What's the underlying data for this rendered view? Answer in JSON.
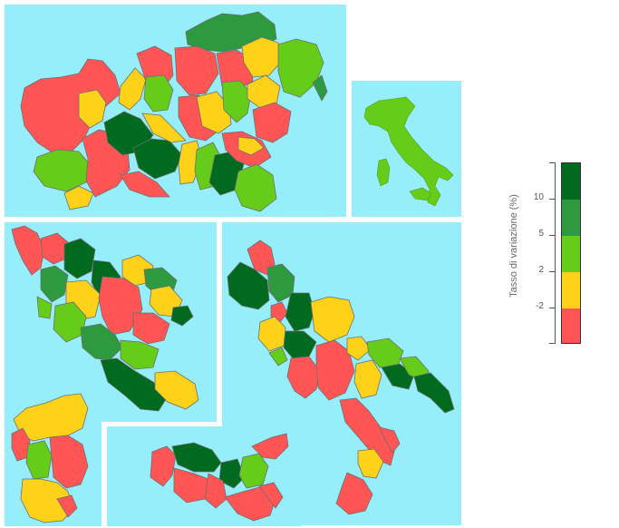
{
  "legend": {
    "title": "Tasso di variazione (%)",
    "ticks": [
      "10",
      "5",
      "2",
      "-2"
    ],
    "classes": [
      {
        "label": "> 10",
        "color": "#006a1f"
      },
      {
        "label": "5 – 10",
        "color": "#2e9a40"
      },
      {
        "label": "2 – 5",
        "color": "#66cc1a"
      },
      {
        "label": "-2 – 2",
        "color": "#ffd21a"
      },
      {
        "label": "< -2",
        "color": "#ff5555"
      }
    ]
  },
  "colors": {
    "sea": "#96eefa",
    "very_high": "#006a1f",
    "high": "#2e9a40",
    "medium": "#66cc1a",
    "stable": "#ffd21a",
    "decline": "#ff5555",
    "border": "#6e6e6e"
  },
  "panels": [
    {
      "name": "northern-italy"
    },
    {
      "name": "italy-overview"
    },
    {
      "name": "central-italy"
    },
    {
      "name": "southern-italy"
    },
    {
      "name": "sardinia"
    },
    {
      "name": "sicily"
    }
  ]
}
